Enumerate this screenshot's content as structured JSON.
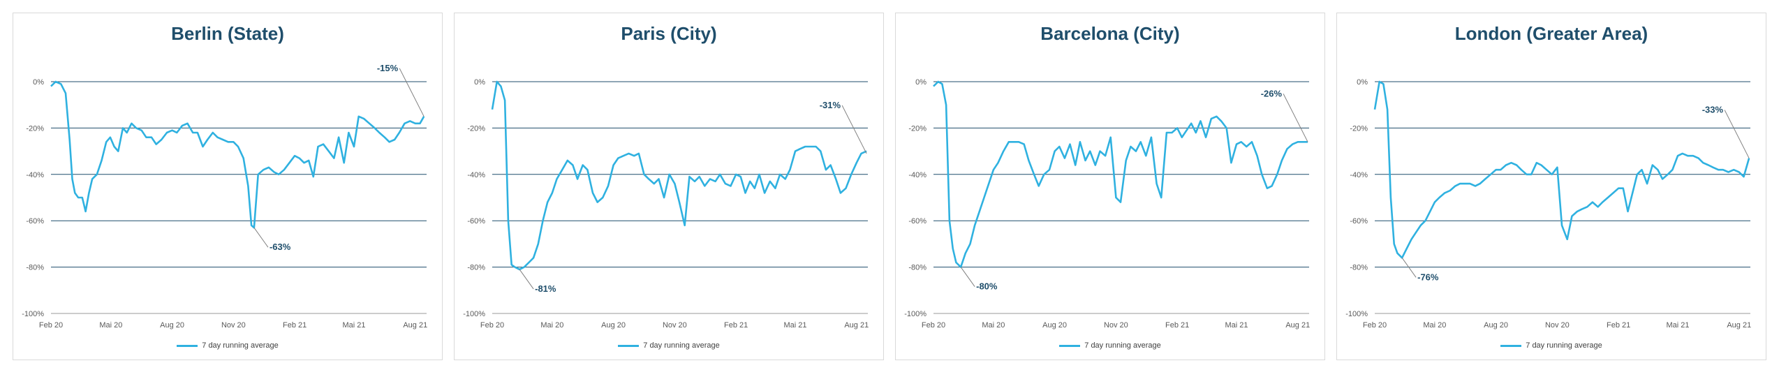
{
  "chart_data": [
    {
      "type": "line",
      "title": "Berlin (State)",
      "x_ticks": [
        "Feb 20",
        "Mai 20",
        "Aug 20",
        "Nov 20",
        "Feb 21",
        "Mai 21",
        "Aug 21"
      ],
      "y_ticks": [
        "0%",
        "-20%",
        "-40%",
        "-60%",
        "-80%",
        "-100%"
      ],
      "ylim": [
        -100,
        0
      ],
      "grid": true,
      "legend_position": "bottom",
      "color": "#2fb1e0",
      "series": [
        {
          "name": "7 day running average",
          "x": [
            "2020-02-15",
            "2020-02-22",
            "2020-03-01",
            "2020-03-08",
            "2020-03-14",
            "2020-03-18",
            "2020-03-22",
            "2020-03-27",
            "2020-04-02",
            "2020-04-07",
            "2020-04-12",
            "2020-04-17",
            "2020-04-24",
            "2020-05-01",
            "2020-05-08",
            "2020-05-14",
            "2020-05-20",
            "2020-05-26",
            "2020-06-02",
            "2020-06-08",
            "2020-06-15",
            "2020-06-22",
            "2020-06-30",
            "2020-07-07",
            "2020-07-15",
            "2020-07-22",
            "2020-07-30",
            "2020-08-07",
            "2020-08-15",
            "2020-08-22",
            "2020-08-30",
            "2020-09-07",
            "2020-09-15",
            "2020-09-22",
            "2020-09-30",
            "2020-10-07",
            "2020-10-15",
            "2020-10-22",
            "2020-10-30",
            "2020-11-07",
            "2020-11-15",
            "2020-11-22",
            "2020-11-30",
            "2020-12-07",
            "2020-12-12",
            "2020-12-16",
            "2020-12-22",
            "2020-12-30",
            "2021-01-07",
            "2021-01-15",
            "2021-01-22",
            "2021-01-30",
            "2021-02-07",
            "2021-02-15",
            "2021-02-22",
            "2021-03-01",
            "2021-03-08",
            "2021-03-15",
            "2021-03-22",
            "2021-03-30",
            "2021-04-07",
            "2021-04-15",
            "2021-04-22",
            "2021-04-30",
            "2021-05-07",
            "2021-05-15",
            "2021-05-22",
            "2021-05-30",
            "2021-06-07",
            "2021-06-15",
            "2021-06-22",
            "2021-06-30",
            "2021-07-07",
            "2021-07-15",
            "2021-07-22",
            "2021-07-30",
            "2021-08-07",
            "2021-08-15",
            "2021-08-22",
            "2021-08-28"
          ],
          "y": [
            -2,
            0,
            -1,
            -5,
            -25,
            -42,
            -48,
            -50,
            -50,
            -56,
            -48,
            -42,
            -40,
            -34,
            -26,
            -24,
            -28,
            -30,
            -20,
            -22,
            -18,
            -20,
            -21,
            -24,
            -24,
            -27,
            -25,
            -22,
            -21,
            -22,
            -19,
            -18,
            -22,
            -22,
            -28,
            -25,
            -22,
            -24,
            -25,
            -26,
            -26,
            -28,
            -33,
            -45,
            -62,
            -63,
            -40,
            -38,
            -37,
            -39,
            -40,
            -38,
            -35,
            -32,
            -33,
            -35,
            -34,
            -41,
            -28,
            -27,
            -30,
            -33,
            -24,
            -35,
            -22,
            -28,
            -15,
            -16,
            -18,
            -20,
            -22,
            -24,
            -26,
            -25,
            -22,
            -18,
            -17,
            -18,
            -18,
            -15
          ]
        }
      ],
      "annotations": [
        {
          "text": "-15%",
          "x": "2021-08-28",
          "y": -15
        },
        {
          "text": "-63%",
          "x": "2020-12-16",
          "y": -63
        }
      ]
    },
    {
      "type": "line",
      "title": "Paris (City)",
      "x_ticks": [
        "Feb 20",
        "Mai 20",
        "Aug 20",
        "Nov 20",
        "Feb 21",
        "Mai 21",
        "Aug 21"
      ],
      "y_ticks": [
        "0%",
        "-20%",
        "-40%",
        "-60%",
        "-80%",
        "-100%"
      ],
      "ylim": [
        -100,
        0
      ],
      "grid": true,
      "legend_position": "bottom",
      "color": "#2fb1e0",
      "series": [
        {
          "name": "7 day running average",
          "x": [
            "2020-02-15",
            "2020-02-22",
            "2020-02-28",
            "2020-03-05",
            "2020-03-10",
            "2020-03-15",
            "2020-03-20",
            "2020-03-27",
            "2020-04-03",
            "2020-04-10",
            "2020-04-17",
            "2020-04-24",
            "2020-05-01",
            "2020-05-08",
            "2020-05-15",
            "2020-05-22",
            "2020-05-30",
            "2020-06-07",
            "2020-06-15",
            "2020-06-22",
            "2020-06-30",
            "2020-07-07",
            "2020-07-15",
            "2020-07-22",
            "2020-07-30",
            "2020-08-07",
            "2020-08-15",
            "2020-08-22",
            "2020-08-30",
            "2020-09-07",
            "2020-09-15",
            "2020-09-22",
            "2020-09-30",
            "2020-10-07",
            "2020-10-15",
            "2020-10-22",
            "2020-10-30",
            "2020-11-07",
            "2020-11-15",
            "2020-11-22",
            "2020-11-30",
            "2020-12-07",
            "2020-12-15",
            "2020-12-22",
            "2020-12-30",
            "2021-01-07",
            "2021-01-15",
            "2021-01-22",
            "2021-01-30",
            "2021-02-07",
            "2021-02-15",
            "2021-02-22",
            "2021-03-01",
            "2021-03-08",
            "2021-03-15",
            "2021-03-22",
            "2021-03-30",
            "2021-04-07",
            "2021-04-15",
            "2021-04-22",
            "2021-04-30",
            "2021-05-07",
            "2021-05-15",
            "2021-05-22",
            "2021-05-30",
            "2021-06-07",
            "2021-06-15",
            "2021-06-22",
            "2021-06-30",
            "2021-07-07",
            "2021-07-15",
            "2021-07-22",
            "2021-07-30",
            "2021-08-07",
            "2021-08-15",
            "2021-08-22",
            "2021-08-30"
          ],
          "y": [
            -12,
            0,
            -2,
            -8,
            -60,
            -79,
            -80,
            -81,
            -80,
            -78,
            -76,
            -70,
            -60,
            -52,
            -48,
            -42,
            -38,
            -34,
            -36,
            -42,
            -36,
            -38,
            -48,
            -52,
            -50,
            -45,
            -36,
            -33,
            -32,
            -31,
            -32,
            -31,
            -40,
            -42,
            -44,
            -42,
            -50,
            -40,
            -44,
            -52,
            -62,
            -41,
            -43,
            -41,
            -45,
            -42,
            -43,
            -40,
            -44,
            -45,
            -40,
            -41,
            -48,
            -43,
            -46,
            -40,
            -48,
            -43,
            -46,
            -40,
            -42,
            -38,
            -30,
            -29,
            -28,
            -28,
            -28,
            -30,
            -38,
            -36,
            -42,
            -48,
            -46,
            -40,
            -35,
            -31,
            -30
          ]
        }
      ],
      "annotations": [
        {
          "text": "-31%",
          "x": "2021-08-30",
          "y": -31
        },
        {
          "text": "-81%",
          "x": "2020-03-27",
          "y": -81
        }
      ]
    },
    {
      "type": "line",
      "title": "Barcelona (City)",
      "x_ticks": [
        "Feb 20",
        "Mai 20",
        "Aug 20",
        "Nov 20",
        "Feb 21",
        "Mai 21",
        "Aug 21"
      ],
      "y_ticks": [
        "0%",
        "-20%",
        "-40%",
        "-60%",
        "-80%",
        "-100%"
      ],
      "ylim": [
        -100,
        0
      ],
      "grid": true,
      "legend_position": "bottom",
      "color": "#2fb1e0",
      "series": [
        {
          "name": "7 day running average",
          "x": [
            "2020-02-15",
            "2020-02-22",
            "2020-02-28",
            "2020-03-05",
            "2020-03-10",
            "2020-03-15",
            "2020-03-20",
            "2020-03-27",
            "2020-04-03",
            "2020-04-10",
            "2020-04-17",
            "2020-04-24",
            "2020-05-01",
            "2020-05-08",
            "2020-05-15",
            "2020-05-22",
            "2020-05-30",
            "2020-06-07",
            "2020-06-15",
            "2020-06-22",
            "2020-06-30",
            "2020-07-07",
            "2020-07-15",
            "2020-07-22",
            "2020-07-30",
            "2020-08-07",
            "2020-08-15",
            "2020-08-22",
            "2020-08-30",
            "2020-09-07",
            "2020-09-15",
            "2020-09-22",
            "2020-09-30",
            "2020-10-07",
            "2020-10-15",
            "2020-10-22",
            "2020-10-30",
            "2020-11-07",
            "2020-11-15",
            "2020-11-22",
            "2020-11-30",
            "2020-12-07",
            "2020-12-15",
            "2020-12-22",
            "2020-12-30",
            "2021-01-07",
            "2021-01-15",
            "2021-01-22",
            "2021-01-30",
            "2021-02-07",
            "2021-02-15",
            "2021-02-22",
            "2021-03-01",
            "2021-03-08",
            "2021-03-15",
            "2021-03-22",
            "2021-03-30",
            "2021-04-07",
            "2021-04-15",
            "2021-04-22",
            "2021-04-30",
            "2021-05-07",
            "2021-05-15",
            "2021-05-22",
            "2021-05-30",
            "2021-06-07",
            "2021-06-15",
            "2021-06-22",
            "2021-06-30",
            "2021-07-07",
            "2021-07-15",
            "2021-07-22",
            "2021-07-30",
            "2021-08-07",
            "2021-08-15",
            "2021-08-22",
            "2021-08-30"
          ],
          "y": [
            -2,
            0,
            -1,
            -10,
            -60,
            -72,
            -78,
            -80,
            -74,
            -70,
            -62,
            -56,
            -50,
            -44,
            -38,
            -35,
            -30,
            -26,
            -26,
            -26,
            -27,
            -34,
            -40,
            -45,
            -40,
            -38,
            -30,
            -28,
            -33,
            -27,
            -36,
            -26,
            -34,
            -30,
            -36,
            -30,
            -32,
            -24,
            -50,
            -52,
            -34,
            -28,
            -30,
            -26,
            -32,
            -24,
            -44,
            -50,
            -22,
            -22,
            -20,
            -24,
            -21,
            -18,
            -22,
            -17,
            -24,
            -16,
            -15,
            -17,
            -20,
            -35,
            -27,
            -26,
            -28,
            -26,
            -32,
            -40,
            -46,
            -45,
            -40,
            -34,
            -29,
            -27,
            -26,
            -26,
            -26
          ]
        }
      ],
      "annotations": [
        {
          "text": "-26%",
          "x": "2021-08-30",
          "y": -26
        },
        {
          "text": "-80%",
          "x": "2020-03-27",
          "y": -80
        }
      ]
    },
    {
      "type": "line",
      "title": "London (Greater Area)",
      "x_ticks": [
        "Feb 20",
        "Mai 20",
        "Aug 20",
        "Nov 20",
        "Feb 21",
        "Mai 21",
        "Aug 21"
      ],
      "y_ticks": [
        "0%",
        "-20%",
        "-40%",
        "-60%",
        "-80%",
        "-100%"
      ],
      "ylim": [
        -100,
        0
      ],
      "grid": true,
      "legend_position": "bottom",
      "color": "#2fb1e0",
      "series": [
        {
          "name": "7 day running average",
          "x": [
            "2020-02-15",
            "2020-02-22",
            "2020-02-28",
            "2020-03-05",
            "2020-03-10",
            "2020-03-15",
            "2020-03-20",
            "2020-03-27",
            "2020-04-03",
            "2020-04-10",
            "2020-04-17",
            "2020-04-24",
            "2020-05-01",
            "2020-05-08",
            "2020-05-15",
            "2020-05-22",
            "2020-05-30",
            "2020-06-07",
            "2020-06-15",
            "2020-06-22",
            "2020-06-30",
            "2020-07-07",
            "2020-07-15",
            "2020-07-22",
            "2020-07-30",
            "2020-08-07",
            "2020-08-15",
            "2020-08-22",
            "2020-08-30",
            "2020-09-07",
            "2020-09-15",
            "2020-09-22",
            "2020-09-30",
            "2020-10-07",
            "2020-10-15",
            "2020-10-22",
            "2020-10-30",
            "2020-11-07",
            "2020-11-15",
            "2020-11-22",
            "2020-11-30",
            "2020-12-07",
            "2020-12-15",
            "2020-12-22",
            "2020-12-30",
            "2021-01-07",
            "2021-01-15",
            "2021-01-22",
            "2021-01-30",
            "2021-02-07",
            "2021-02-15",
            "2021-02-22",
            "2021-03-01",
            "2021-03-08",
            "2021-03-15",
            "2021-03-22",
            "2021-03-30",
            "2021-04-07",
            "2021-04-15",
            "2021-04-22",
            "2021-04-30",
            "2021-05-07",
            "2021-05-15",
            "2021-05-22",
            "2021-05-30",
            "2021-06-07",
            "2021-06-15",
            "2021-06-22",
            "2021-06-30",
            "2021-07-07",
            "2021-07-15",
            "2021-07-22",
            "2021-07-30",
            "2021-08-07",
            "2021-08-15",
            "2021-08-22",
            "2021-08-30"
          ],
          "y": [
            -12,
            0,
            -1,
            -12,
            -50,
            -70,
            -74,
            -76,
            -72,
            -68,
            -65,
            -62,
            -60,
            -56,
            -52,
            -50,
            -48,
            -47,
            -45,
            -44,
            -44,
            -44,
            -45,
            -44,
            -42,
            -40,
            -38,
            -38,
            -36,
            -35,
            -36,
            -38,
            -40,
            -40,
            -35,
            -36,
            -38,
            -40,
            -37,
            -62,
            -68,
            -58,
            -56,
            -55,
            -54,
            -52,
            -54,
            -52,
            -50,
            -48,
            -46,
            -46,
            -56,
            -48,
            -40,
            -38,
            -44,
            -36,
            -38,
            -42,
            -40,
            -38,
            -32,
            -31,
            -32,
            -32,
            -33,
            -35,
            -36,
            -37,
            -38,
            -38,
            -39,
            -38,
            -39,
            -41,
            -33
          ]
        }
      ],
      "annotations": [
        {
          "text": "-33%",
          "x": "2021-08-30",
          "y": -33
        },
        {
          "text": "-76%",
          "x": "2020-03-27",
          "y": -76
        }
      ]
    }
  ]
}
